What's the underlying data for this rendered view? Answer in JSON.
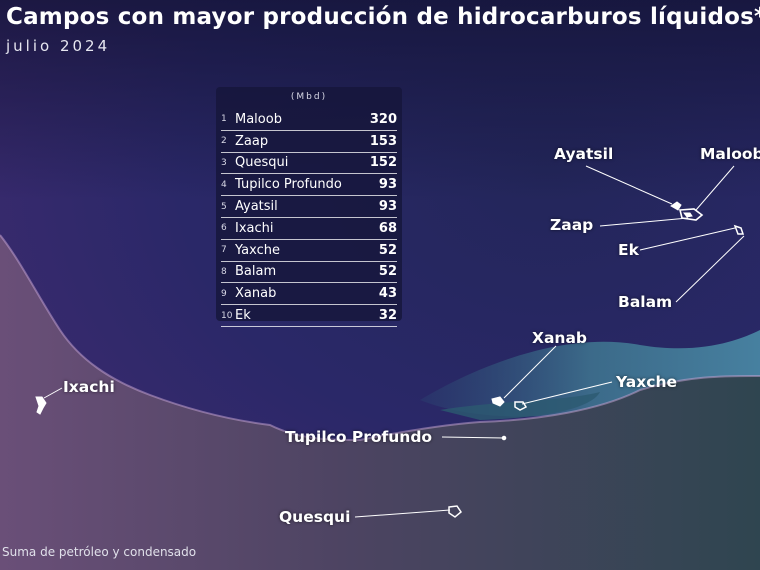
{
  "title": "Campos con mayor producción de hidrocarburos líquidos*",
  "subtitle": "julio 2024",
  "unit": "(Mbd)",
  "footnote": "Suma de petróleo y condensado",
  "colors": {
    "sea_dark": "#1b1c4a",
    "sea_light": "#4a6e8f",
    "land": "#4a3f5e",
    "panel": "#16163a"
  },
  "table": [
    {
      "rank": "1",
      "name": "Maloob",
      "value": "320"
    },
    {
      "rank": "2",
      "name": "Zaap",
      "value": "153"
    },
    {
      "rank": "3",
      "name": "Quesqui",
      "value": "152"
    },
    {
      "rank": "4",
      "name": "Tupilco Profundo",
      "value": "93"
    },
    {
      "rank": "5",
      "name": "Ayatsil",
      "value": "93"
    },
    {
      "rank": "6",
      "name": "Ixachi",
      "value": "68"
    },
    {
      "rank": "7",
      "name": "Yaxche",
      "value": "52"
    },
    {
      "rank": "8",
      "name": "Balam",
      "value": "52"
    },
    {
      "rank": "9",
      "name": "Xanab",
      "value": "43"
    },
    {
      "rank": "10",
      "name": "Ek",
      "value": "32"
    }
  ],
  "labels": {
    "ayatsil": "Ayatsil",
    "maloob": "Maloob",
    "zaap": "Zaap",
    "ek": "Ek",
    "balam": "Balam",
    "xanab": "Xanab",
    "yaxche": "Yaxche",
    "tupilco": "Tupilco Profundo",
    "ixachi": "Ixachi",
    "quesqui": "Quesqui"
  }
}
